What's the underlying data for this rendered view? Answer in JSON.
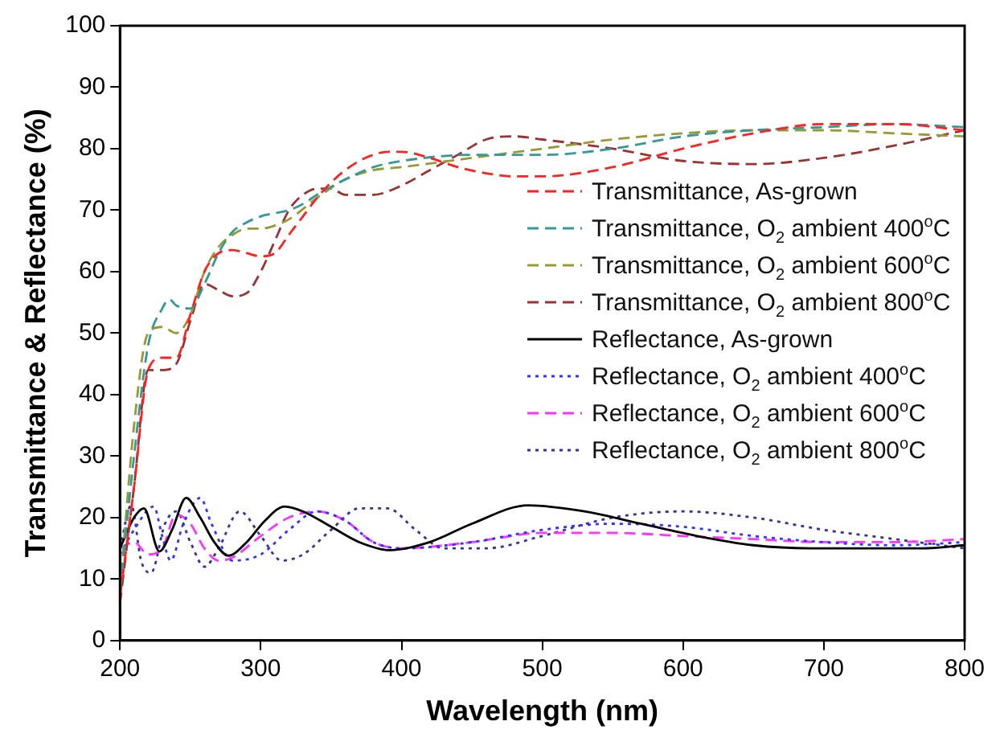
{
  "chart_data": {
    "type": "line",
    "xlabel": "Wavelength (nm)",
    "ylabel": "Transmittance & Reflectance (%)",
    "xlim": [
      200,
      800
    ],
    "ylim": [
      0,
      100
    ],
    "xticks": [
      200,
      300,
      400,
      500,
      600,
      700,
      800
    ],
    "yticks": [
      0,
      10,
      20,
      30,
      40,
      50,
      60,
      70,
      80,
      90,
      100
    ],
    "grid": false,
    "legend": "right",
    "marker": "none",
    "series": [
      {
        "name": "Transmittance, As-grown",
        "color": "#ff2020",
        "line_style": "dashed",
        "x": [
          200,
          210,
          220,
          230,
          240,
          250,
          260,
          270,
          280,
          290,
          300,
          310,
          320,
          330,
          340,
          350,
          360,
          370,
          380,
          390,
          400,
          420,
          440,
          460,
          480,
          500,
          550,
          600,
          650,
          700,
          750,
          800
        ],
        "values": [
          7,
          25,
          44,
          46,
          46,
          53,
          60,
          63,
          63.5,
          63,
          62.5,
          63,
          66,
          69,
          72,
          74.5,
          76.5,
          78,
          79,
          79.5,
          79.5,
          78.5,
          77,
          76,
          75.5,
          75.5,
          77,
          80,
          82.5,
          84,
          84,
          83
        ]
      },
      {
        "name": "Transmittance, O$_{2}$ ambient 400$^{o}$C",
        "color": "#339999",
        "line_style": "dashed",
        "x": [
          200,
          210,
          220,
          230,
          235,
          240,
          250,
          260,
          270,
          280,
          290,
          300,
          310,
          320,
          330,
          340,
          360,
          380,
          400,
          450,
          500,
          550,
          600,
          650,
          700,
          750,
          800
        ],
        "values": [
          8,
          30,
          48,
          54,
          55.5,
          54.5,
          54,
          58,
          63,
          66.5,
          68,
          69,
          69.5,
          70,
          71,
          72.5,
          75,
          77,
          78,
          79,
          79,
          80,
          82,
          83,
          83.5,
          84,
          83.5
        ]
      },
      {
        "name": "Transmittance, O$_{2}$ ambient 600$^{o}$C",
        "color": "#999933",
        "line_style": "dashed",
        "x": [
          200,
          210,
          220,
          230,
          240,
          250,
          260,
          270,
          280,
          290,
          300,
          310,
          320,
          340,
          360,
          380,
          400,
          450,
          500,
          550,
          600,
          650,
          700,
          750,
          800
        ],
        "values": [
          8,
          35,
          50,
          51,
          50,
          53,
          60,
          64,
          66,
          67,
          67,
          67.5,
          68.5,
          72,
          75,
          76.5,
          77,
          78.5,
          80,
          81.5,
          82.5,
          83,
          83,
          82.5,
          82
        ]
      },
      {
        "name": "Transmittance, O$_{2}$ ambient 800$^{o}$C",
        "color": "#993333",
        "line_style": "dashed",
        "x": [
          200,
          210,
          220,
          230,
          240,
          250,
          260,
          270,
          280,
          290,
          300,
          310,
          320,
          330,
          340,
          350,
          360,
          380,
          400,
          420,
          440,
          460,
          480,
          500,
          550,
          600,
          650,
          700,
          750,
          800
        ],
        "values": [
          6,
          25,
          44,
          44,
          45,
          52,
          58,
          57,
          56,
          56.5,
          60,
          65,
          70,
          72.5,
          73.5,
          73.5,
          72.5,
          72.5,
          74,
          76.5,
          79,
          81.5,
          82,
          81.5,
          80,
          78,
          77.5,
          78.5,
          80.5,
          83
        ]
      },
      {
        "name": "Reflectance, As-grown",
        "color": "#000000",
        "line_style": "solid",
        "x": [
          200,
          210,
          217,
          228,
          237,
          247,
          257,
          267,
          277,
          290,
          303,
          317,
          330,
          350,
          370,
          392,
          420,
          450,
          490,
          530,
          570,
          610,
          650,
          690,
          730,
          770,
          800
        ],
        "values": [
          15,
          20,
          21.5,
          14.5,
          18,
          23.2,
          20,
          16,
          13.8,
          16,
          19.5,
          21.8,
          21,
          18.5,
          16,
          14.7,
          16,
          19,
          22,
          21,
          19,
          17,
          15.5,
          15,
          15,
          15,
          15.5
        ]
      },
      {
        "name": "Reflectance, O$_{2}$ ambient 400$^{o}$C",
        "color": "#3333ff",
        "line_style": "dotted",
        "x": [
          200,
          210,
          224,
          230,
          236,
          245,
          257,
          265,
          280,
          300,
          320,
          340,
          360,
          380,
          400,
          450,
          500,
          550,
          600,
          650,
          700,
          750,
          800
        ],
        "values": [
          14,
          18,
          21.8,
          17,
          13,
          19,
          23.2,
          19,
          13,
          14,
          18,
          21,
          19.5,
          16,
          15,
          16,
          18,
          19,
          18.5,
          17,
          16,
          15.5,
          16
        ]
      },
      {
        "name": "Reflectance, O$_{2}$ ambient 600$^{o}$C",
        "color": "#ff33ff",
        "line_style": "dashed",
        "x": [
          200,
          210,
          220,
          230,
          240,
          250,
          260,
          270,
          280,
          300,
          320,
          340,
          360,
          380,
          400,
          450,
          500,
          550,
          600,
          650,
          700,
          750,
          800
        ],
        "values": [
          15,
          16,
          14,
          15,
          20.5,
          19,
          15,
          13,
          13.5,
          17,
          20,
          21,
          19.5,
          16,
          15,
          16,
          17.5,
          17.5,
          17,
          16.5,
          16,
          16,
          16.5
        ]
      },
      {
        "name": "Reflectance, O$_{2}$ ambient 800$^{o}$C",
        "color": "#333399",
        "line_style": "dotted",
        "x": [
          200,
          208,
          215,
          222,
          232,
          240,
          250,
          260,
          270,
          285,
          300,
          315,
          330,
          350,
          370,
          390,
          410,
          430,
          460,
          500,
          550,
          600,
          650,
          700,
          750,
          800
        ],
        "values": [
          15,
          22,
          13,
          11,
          19,
          21,
          16,
          12,
          15,
          21,
          17,
          13,
          14,
          18,
          21.5,
          21.5,
          18,
          15,
          15,
          17,
          20,
          21,
          20,
          18,
          16.5,
          15
        ]
      }
    ]
  }
}
